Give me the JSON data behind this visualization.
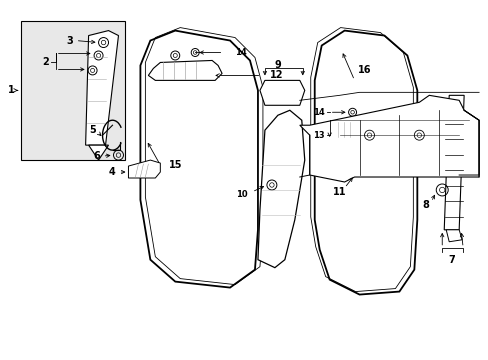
{
  "bg_color": "#ffffff",
  "line_color": "#000000",
  "fig_width": 4.89,
  "fig_height": 3.6,
  "dpi": 100,
  "label_fs": 7,
  "lw": 0.8
}
